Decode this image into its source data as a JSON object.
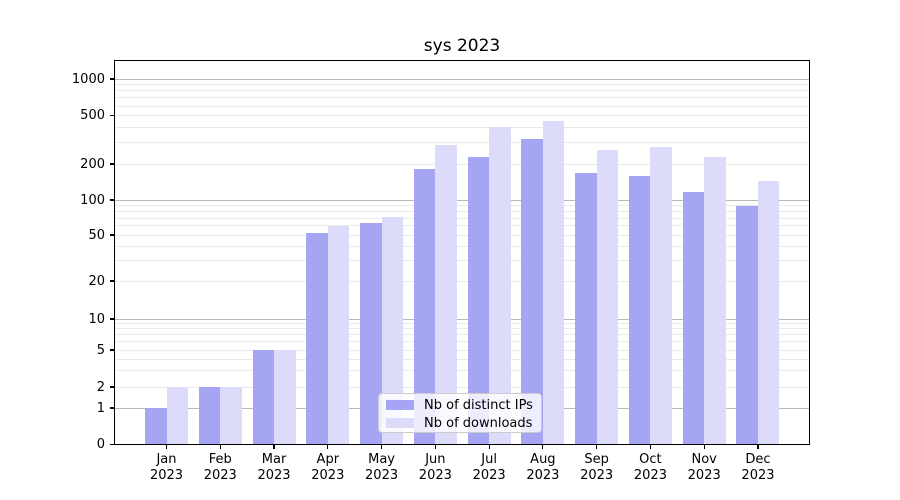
{
  "title": "sys 2023",
  "legend": {
    "items": [
      {
        "label": "Nb of distinct IPs",
        "color": "#a5a5f3"
      },
      {
        "label": "Nb of downloads",
        "color": "#dcdcfa"
      }
    ]
  },
  "chart_data": {
    "type": "bar",
    "title": "sys 2023",
    "categories": [
      "Jan",
      "Feb",
      "Mar",
      "Apr",
      "May",
      "Jun",
      "Jul",
      "Aug",
      "Sep",
      "Oct",
      "Nov",
      "Dec"
    ],
    "category_year": "2023",
    "series": [
      {
        "name": "Nb of distinct IPs",
        "color": "#a5a5f3",
        "values": [
          1,
          2,
          5,
          52,
          63,
          183,
          230,
          323,
          168,
          158,
          117,
          89
        ]
      },
      {
        "name": "Nb of downloads",
        "color": "#dcdcfa",
        "values": [
          2,
          2,
          5,
          60,
          72,
          288,
          403,
          450,
          260,
          277,
          228,
          145
        ]
      }
    ],
    "xlabel": "",
    "ylabel": "",
    "y_axis": {
      "scale": "log-like (symlog, zero shown)",
      "ticks": [
        0,
        1,
        2,
        5,
        10,
        20,
        50,
        100,
        200,
        500,
        1000
      ],
      "ylim": [
        0,
        1450
      ]
    },
    "grid": true,
    "minor_grid": true,
    "legend_position": "lower center",
    "bar_colors": {
      "distinct_ips": "#a5a5f3",
      "downloads": "#dcdcfa"
    }
  }
}
